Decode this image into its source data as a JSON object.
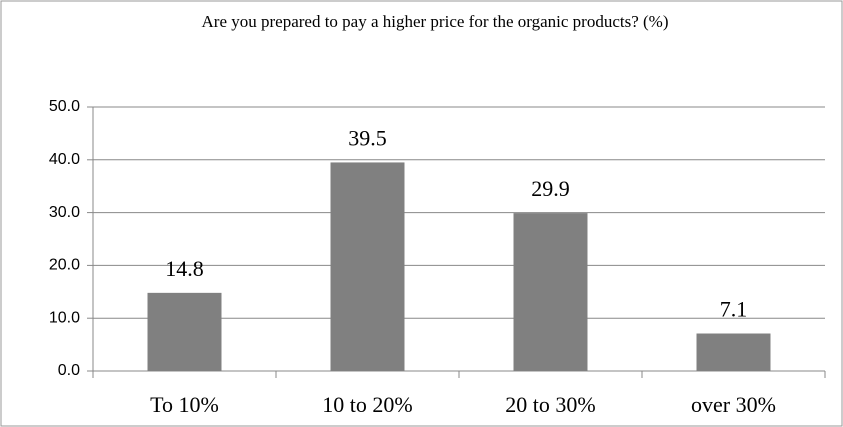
{
  "chart_data": {
    "type": "bar",
    "title": "Are you prepared to pay a higher price for the organic products? (%)",
    "categories": [
      "To 10%",
      "10 to 20%",
      "20 to 30%",
      "over 30%"
    ],
    "values": [
      14.8,
      39.5,
      29.9,
      7.1
    ],
    "color": "#808080",
    "ylim": [
      0,
      50
    ],
    "yticks": [
      {
        "value": 0,
        "label": "0.0"
      },
      {
        "value": 10,
        "label": "10.0"
      },
      {
        "value": 20,
        "label": "20.0"
      },
      {
        "value": 30,
        "label": "30.0"
      },
      {
        "value": 40,
        "label": "40.0"
      },
      {
        "value": 50,
        "label": "50.0"
      }
    ],
    "grid": true
  }
}
